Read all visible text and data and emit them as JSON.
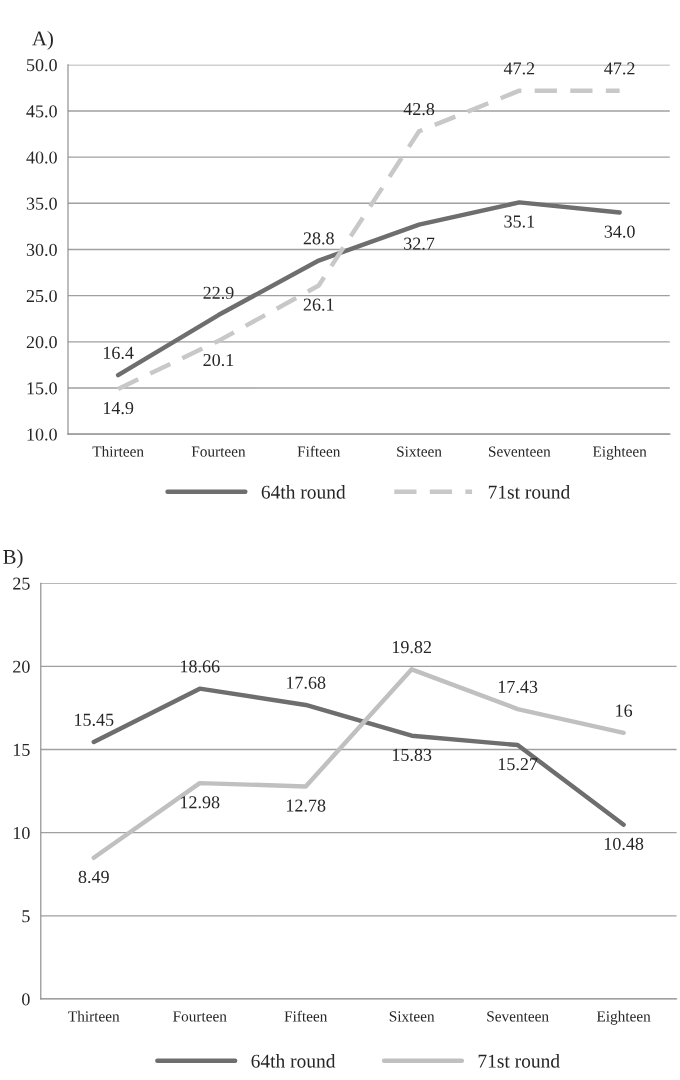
{
  "chart_data": [
    {
      "type": "line",
      "title": "A)",
      "categories": [
        "Thirteen",
        "Fourteen",
        "Fifteen",
        "Sixteen",
        "Seventeen",
        "Eighteen"
      ],
      "series": [
        {
          "name": "64th round",
          "color": "#6e6e6e",
          "line_style": "solid",
          "values": [
            16.4,
            22.9,
            28.8,
            32.7,
            35.1,
            34.0
          ],
          "value_labels": [
            "16.4",
            "22.9",
            "28.8",
            "32.7",
            "35.1",
            "34.0"
          ]
        },
        {
          "name": "71st round",
          "color": "#c8c8c8",
          "line_style": "dashed",
          "values": [
            14.9,
            20.1,
            26.1,
            42.8,
            47.2,
            47.2
          ]
        }
      ],
      "ylim": [
        10,
        50
      ],
      "yticks": [
        {
          "value": 10,
          "label": "10.0"
        },
        {
          "value": 15,
          "label": "15.0"
        },
        {
          "value": 20,
          "label": "20.0"
        },
        {
          "value": 25,
          "label": "25.0"
        },
        {
          "value": 30,
          "label": "30.0"
        },
        {
          "value": 35,
          "label": "35.0"
        },
        {
          "value": 40,
          "label": "40.0"
        },
        {
          "value": 45,
          "label": "45.0"
        },
        {
          "value": 50,
          "label": "50.0"
        }
      ],
      "grid": "y",
      "legend": "bottom",
      "data_labels": true,
      "marker": "none"
    },
    {
      "type": "line",
      "title": "B)",
      "categories": [
        "Thirteen",
        "Fourteen",
        "Fifteen",
        "Sixteen",
        "Seventeen",
        "Eighteen"
      ],
      "series": [
        {
          "name": "64th round",
          "color": "#6e6e6e",
          "line_style": "solid",
          "values": [
            15.45,
            18.66,
            17.68,
            15.83,
            15.27,
            10.48
          ]
        },
        {
          "name": "71st round",
          "color": "#c0c0c0",
          "line_style": "solid",
          "values": [
            8.49,
            12.98,
            12.78,
            19.82,
            17.43,
            16
          ]
        }
      ],
      "ylim": [
        0,
        25
      ],
      "yticks": [
        0,
        5,
        10,
        15,
        20,
        25
      ],
      "grid": "y",
      "legend": "bottom",
      "data_labels": true,
      "marker": "none"
    }
  ]
}
